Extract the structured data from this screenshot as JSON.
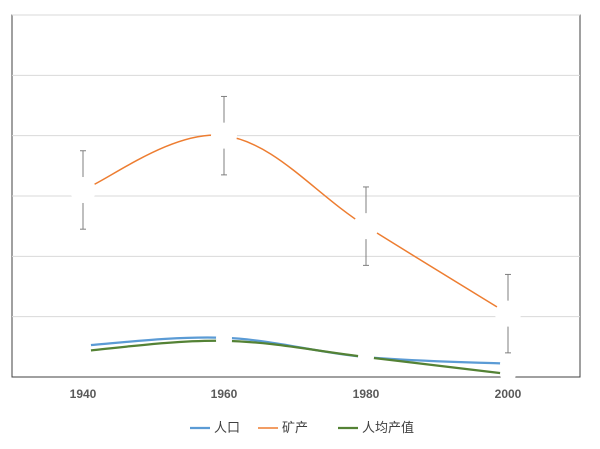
{
  "chart_data": {
    "type": "line",
    "title": "",
    "xlabel": "",
    "ylabel": "",
    "x": [
      "1940",
      "1960",
      "1980",
      "2000"
    ],
    "ylim": [
      0,
      6
    ],
    "y_gridlines": [
      1,
      2,
      3,
      4,
      5,
      6
    ],
    "y_tick_labels_visible": false,
    "grid": "horizontal",
    "legend_position": "bottom",
    "smooth": true,
    "series": [
      {
        "name": "人口",
        "color": "#5b9bd5",
        "values": [
          0.52,
          0.65,
          0.33,
          0.22
        ]
      },
      {
        "name": "矿产",
        "color": "#ed7d31",
        "values": [
          3.1,
          4.0,
          2.5,
          1.05
        ],
        "error_bars": [
          0.65,
          0.65,
          0.65,
          0.65
        ]
      },
      {
        "name": "人均产值",
        "color": "#548235",
        "values": [
          0.43,
          0.6,
          0.33,
          0.05
        ]
      }
    ]
  }
}
